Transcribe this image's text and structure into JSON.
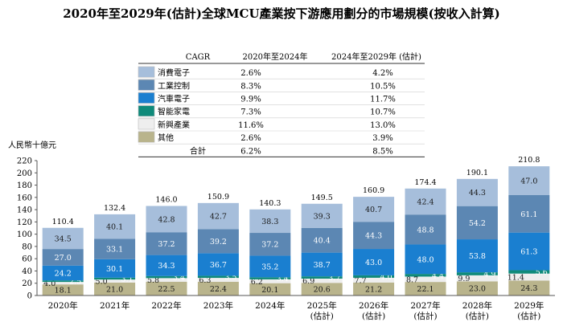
{
  "chart_data": {
    "type": "bar",
    "stacked": true,
    "title": "2020年至2029年(估計)全球MCU產業按下游應用劃分的市場規模(按收入計算)",
    "ylabel": "人民幣十億元",
    "ylim": [
      0,
      220
    ],
    "yticks": [
      0,
      20,
      40,
      60,
      80,
      100,
      120,
      140,
      160,
      180,
      200,
      220
    ],
    "grid": false,
    "legend_position": "top-center-table",
    "categories": [
      [
        "2020年"
      ],
      [
        "2021年"
      ],
      [
        "2022年"
      ],
      [
        "2023年"
      ],
      [
        "2024年"
      ],
      [
        "2025年",
        "(估計)"
      ],
      [
        "2026年",
        "(估計)"
      ],
      [
        "2027年",
        "(估計)"
      ],
      [
        "2028年",
        "(估計)"
      ],
      [
        "2029年",
        "(估計)"
      ]
    ],
    "totals": [
      "110.4",
      "132.4",
      "146.0",
      "150.9",
      "140.3",
      "149.5",
      "160.9",
      "174.4",
      "190.1",
      "210.8"
    ],
    "series": [
      {
        "name": "其他",
        "color": "#b9b48c",
        "label_color": "#1a1a1a",
        "values": [
          18.1,
          21.0,
          22.5,
          22.4,
          20.1,
          20.6,
          21.2,
          22.1,
          23.0,
          24.3
        ],
        "labels": [
          "18.1",
          "21.0",
          "22.5",
          "22.4",
          "20.1",
          "20.6",
          "21.2",
          "22.1",
          "23.0",
          "24.3"
        ]
      },
      {
        "name": "新興產業",
        "color": "#eeeeee",
        "label_color": "#1a1a1a",
        "values": [
          4.0,
          5.0,
          5.8,
          6.3,
          6.2,
          6.9,
          7.7,
          8.7,
          9.9,
          11.4
        ],
        "labels": [
          "4.0",
          "5.0",
          "5.8",
          "6.3",
          "6.2",
          "6.9",
          "7.7",
          "8.7",
          "9.9",
          "11.4"
        ]
      },
      {
        "name": "智能家電",
        "color": "#0f8a7a",
        "label_color": "#ffffff",
        "values": [
          2.5,
          3.1,
          3.4,
          3.5,
          3.4,
          3.7,
          4.0,
          4.4,
          4.9,
          5.6
        ],
        "labels": [
          "2.5",
          "3.1",
          "3.4",
          "3.5",
          "3.4",
          "3.7",
          "4.0",
          "4.4",
          "4.9",
          "5.6"
        ]
      },
      {
        "name": "汽車電子",
        "color": "#1a7fd0",
        "label_color": "#ffffff",
        "values": [
          24.2,
          30.1,
          34.3,
          36.7,
          35.2,
          38.7,
          43.0,
          48.0,
          53.8,
          61.3
        ],
        "labels": [
          "24.2",
          "30.1",
          "34.3",
          "36.7",
          "35.2",
          "38.7",
          "43.0",
          "48.0",
          "53.8",
          "61.3"
        ]
      },
      {
        "name": "工業控制",
        "color": "#5c87b3",
        "label_color": "#ffffff",
        "values": [
          27.0,
          33.1,
          37.2,
          39.2,
          37.2,
          40.4,
          44.3,
          48.8,
          54.2,
          61.1
        ],
        "labels": [
          "27.0",
          "33.1",
          "37.2",
          "39.2",
          "37.2",
          "40.4",
          "44.3",
          "48.8",
          "54.2",
          "61.1"
        ]
      },
      {
        "name": "消費電子",
        "color": "#a6bedb",
        "label_color": "#1a1a1a",
        "values": [
          34.5,
          40.1,
          42.8,
          42.7,
          38.3,
          39.3,
          40.7,
          42.4,
          44.3,
          47.0
        ],
        "labels": [
          "34.5",
          "40.1",
          "42.8",
          "42.7",
          "38.3",
          "39.3",
          "40.7",
          "42.4",
          "44.3",
          "47.0"
        ]
      }
    ],
    "cagr_table": {
      "header": [
        "CAGR",
        "2020年至2024年",
        "2024年至2029年 (估計)"
      ],
      "rows": [
        {
          "name": "消費電子",
          "color": "#a6bedb",
          "a": "2.6%",
          "b": "4.2%"
        },
        {
          "name": "工業控制",
          "color": "#5c87b3",
          "a": "8.3%",
          "b": "10.5%"
        },
        {
          "name": "汽車電子",
          "color": "#1a7fd0",
          "a": "9.9%",
          "b": "11.7%"
        },
        {
          "name": "智能家電",
          "color": "#0f8a7a",
          "a": "7.3%",
          "b": "10.7%"
        },
        {
          "name": "新興產業",
          "color": "#eeeeee",
          "a": "11.6%",
          "b": "13.0%"
        },
        {
          "name": "其他",
          "color": "#b9b48c",
          "a": "2.6%",
          "b": "3.9%"
        }
      ],
      "total_row": {
        "name": "合計",
        "a": "6.2%",
        "b": "8.5%"
      }
    }
  }
}
